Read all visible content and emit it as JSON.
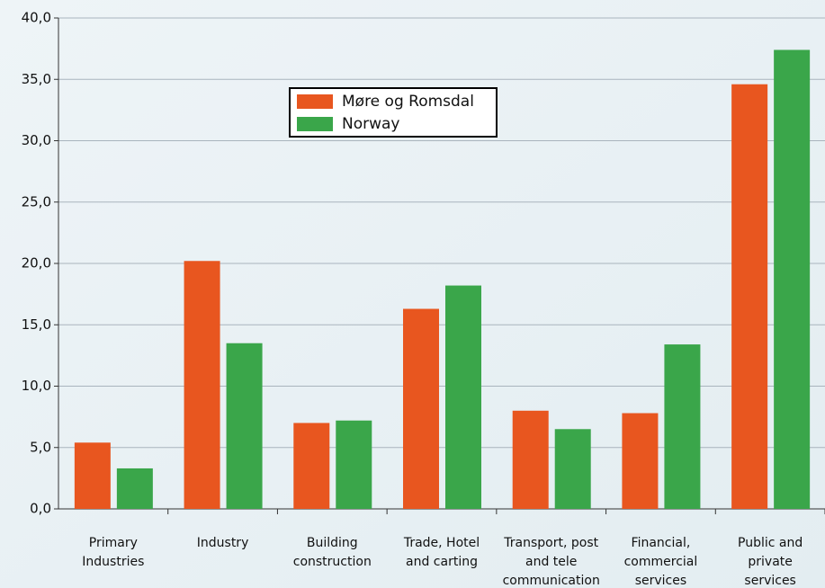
{
  "chart_data": {
    "type": "bar",
    "categories": [
      "Primary\nIndustries",
      "Industry",
      "Building\nconstruction",
      "Trade, Hotel\nand carting",
      "Transport, post\nand tele\ncommunication",
      "Financial,\ncommercial\nservices",
      "Public and\nprivate\nservices"
    ],
    "series": [
      {
        "name": "Møre og Romsdal",
        "color": "#e8561f",
        "values": [
          5.4,
          20.2,
          7.0,
          16.3,
          8.0,
          7.8,
          34.6
        ]
      },
      {
        "name": "Norway",
        "color": "#3aa64a",
        "values": [
          3.3,
          13.5,
          7.2,
          18.2,
          6.5,
          13.4,
          37.4
        ]
      }
    ],
    "ylim": [
      0,
      40
    ],
    "yticks": [
      {
        "value": 0,
        "label": "0,0"
      },
      {
        "value": 5,
        "label": "5,0"
      },
      {
        "value": 10,
        "label": "10,0"
      },
      {
        "value": 15,
        "label": "15,0"
      },
      {
        "value": 20,
        "label": "20,0"
      },
      {
        "value": 25,
        "label": "25,0"
      },
      {
        "value": 30,
        "label": "30,0"
      },
      {
        "value": 35,
        "label": "35,0"
      },
      {
        "value": 40,
        "label": "40,0"
      }
    ],
    "grid": true
  }
}
